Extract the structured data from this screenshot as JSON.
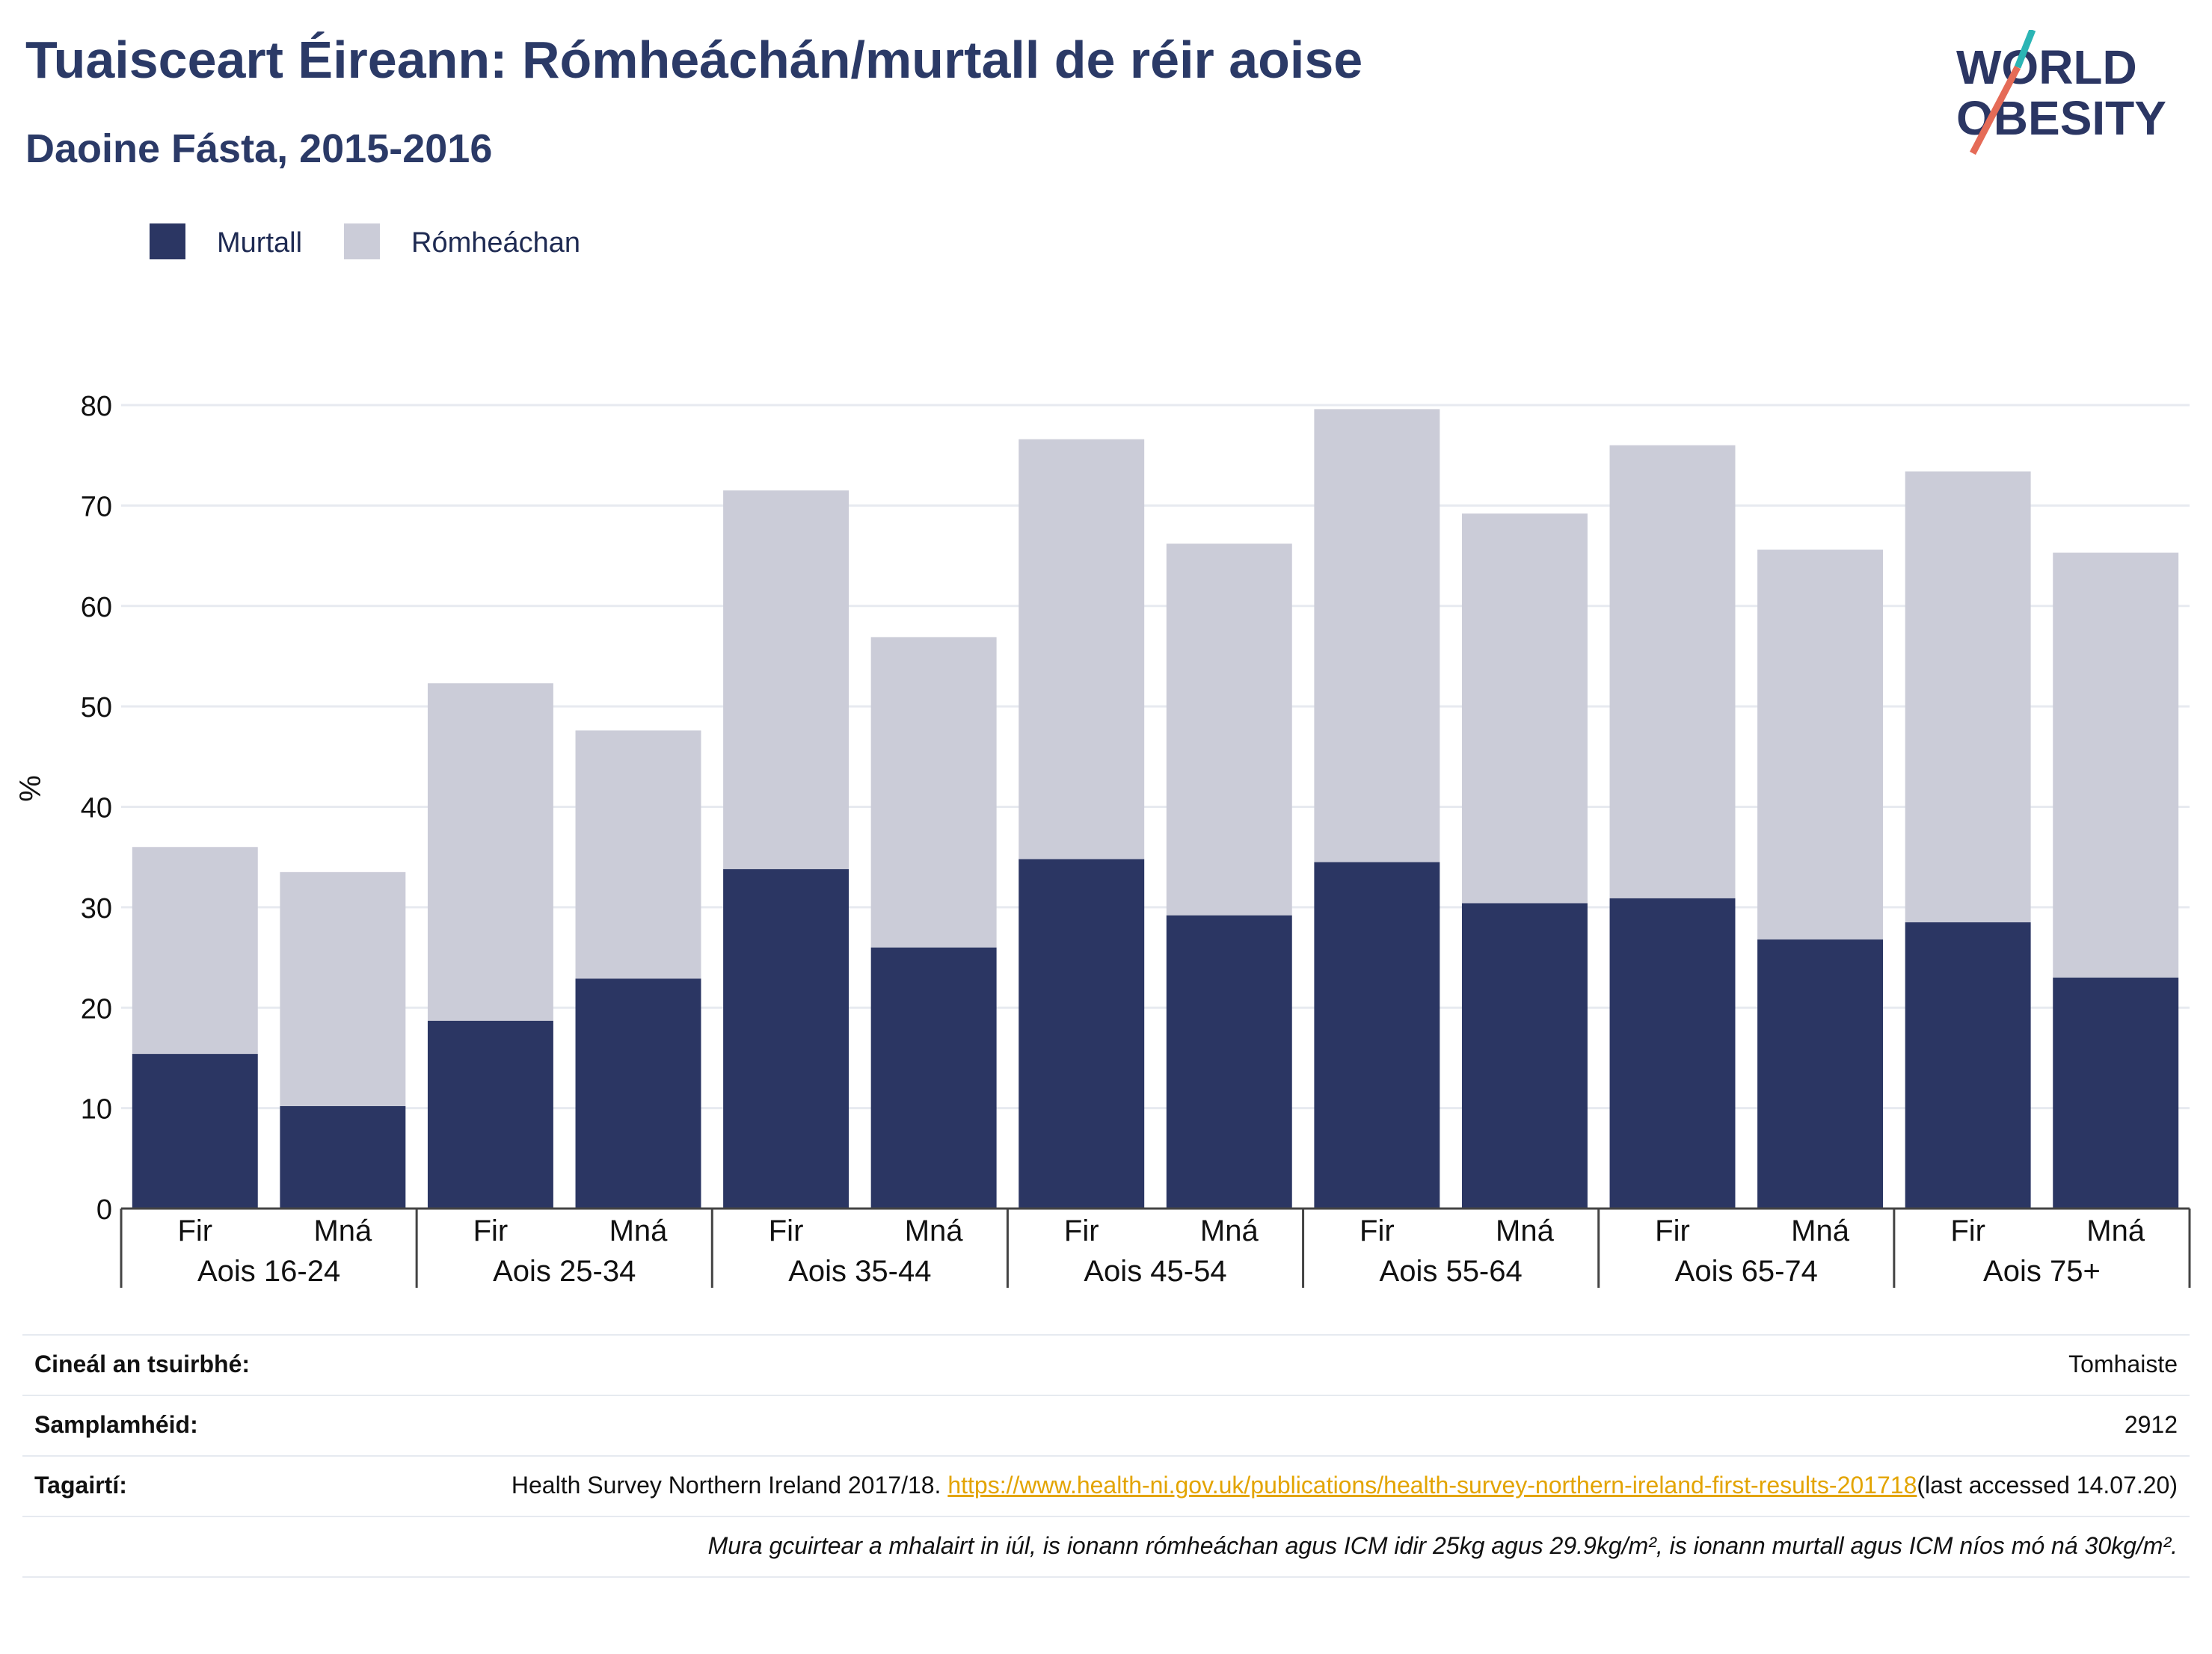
{
  "title": "Tuaisceart Éireann: Rómheáchán/murtall de réir aoise",
  "subtitle": "Daoine Fásta, 2015-2016",
  "logo": {
    "line1": "WORLD",
    "line2": "OBESITY",
    "accent_colors": [
      "#2bb5b5",
      "#e56b57"
    ]
  },
  "colors": {
    "obesity": "#2b3663",
    "overweight": "#cbccd8",
    "grid": "#e7eaf0",
    "text": "#1e2a52"
  },
  "chart_data": {
    "type": "bar",
    "stacked": true,
    "ylabel": "%",
    "ylim": [
      0,
      80
    ],
    "yticks": [
      0,
      10,
      20,
      30,
      40,
      50,
      60,
      70,
      80
    ],
    "legend": {
      "position": "top-left",
      "items": [
        {
          "name": "Murtall",
          "color": "#2b3663"
        },
        {
          "name": "Rómheáchan",
          "color": "#cbccd8"
        }
      ]
    },
    "groups": [
      "Aois 16-24",
      "Aois 25-34",
      "Aois 35-44",
      "Aois 45-54",
      "Aois 55-64",
      "Aois 65-74",
      "Aois 75+"
    ],
    "subcategories": [
      "Fir",
      "Mná"
    ],
    "series": [
      {
        "name": "Murtall",
        "values": [
          15.4,
          10.2,
          18.7,
          22.9,
          33.8,
          26.0,
          34.8,
          29.2,
          34.5,
          30.4,
          30.9,
          26.8,
          28.5,
          23.0
        ]
      },
      {
        "name": "Rómheáchan",
        "values": [
          20.6,
          23.3,
          33.6,
          24.7,
          37.7,
          30.9,
          41.8,
          37.0,
          45.1,
          38.8,
          45.1,
          38.8,
          44.9,
          42.3
        ]
      }
    ]
  },
  "info": {
    "survey_type_label": "Cineál an tsuirbhé:",
    "survey_type_value": "Tomhaiste",
    "sample_label": "Samplamhéid:",
    "sample_value": "2912",
    "refs_label": "Tagairtí:",
    "refs_text": "Health Survey Northern Ireland 2017/18.",
    "refs_url": "https://www.health-ni.gov.uk/publications/health-survey-northern-ireland-first-results-201718",
    "refs_suffix": "(last accessed 14.07.20)",
    "note": "Mura gcuirtear a mhalairt in iúl, is ionann rómheáchan agus ICM idir 25kg agus 29.9kg/m², is ionann murtall agus ICM níos mó ná 30kg/m²."
  }
}
